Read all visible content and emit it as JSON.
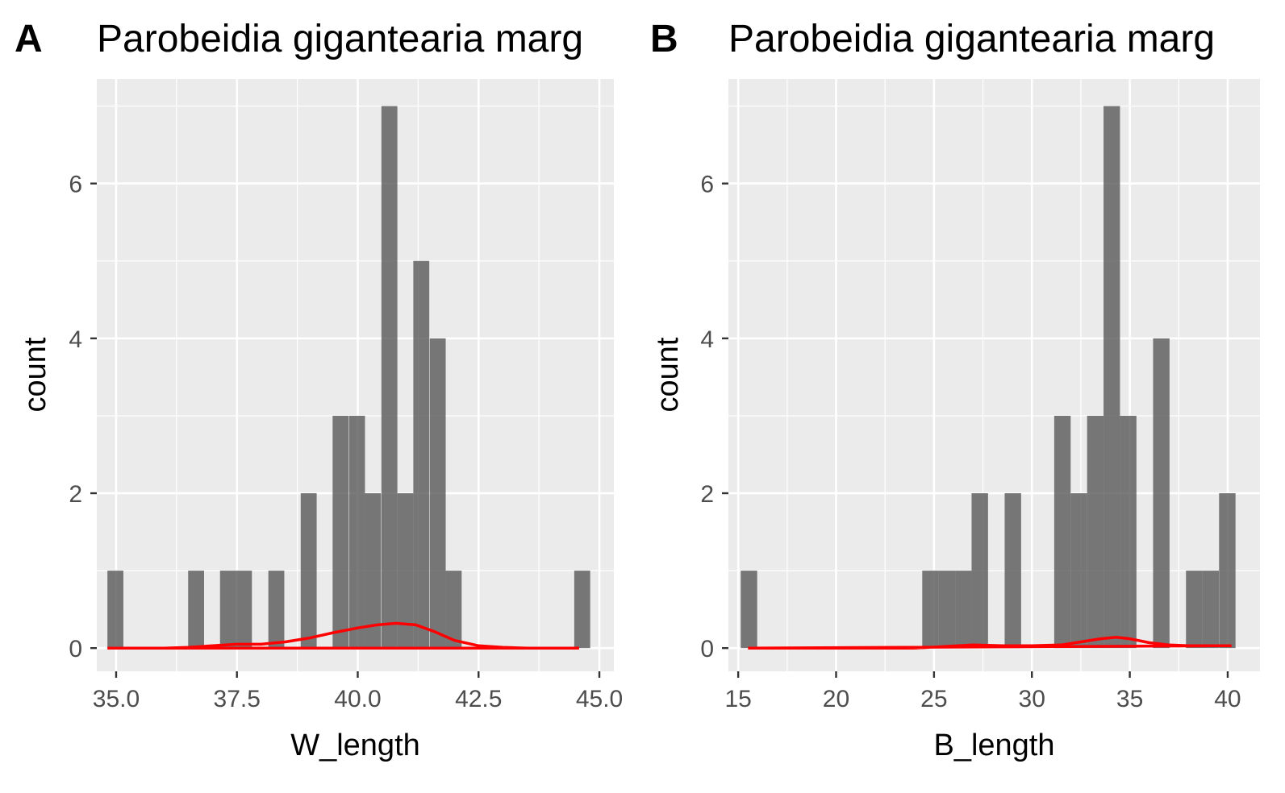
{
  "chart_data": [
    {
      "type": "bar",
      "panel_tag": "A",
      "title": "Parobeidia gigantearia marg",
      "xlabel": "W_length",
      "ylabel": "count",
      "xlim": [
        34.6,
        45.3
      ],
      "ylim": [
        -0.3,
        7.35
      ],
      "x_ticks": [
        35.0,
        37.5,
        40.0,
        42.5,
        45.0
      ],
      "x_tick_labels": [
        "35.0",
        "37.5",
        "40.0",
        "42.5",
        "45.0"
      ],
      "y_ticks": [
        0,
        2,
        4,
        6
      ],
      "y_tick_labels": [
        "0",
        "2",
        "4",
        "6"
      ],
      "bin_width": 0.33,
      "bins": [
        {
          "x0": 34.82,
          "count": 1
        },
        {
          "x0": 36.49,
          "count": 1
        },
        {
          "x0": 37.15,
          "count": 1
        },
        {
          "x0": 37.48,
          "count": 1
        },
        {
          "x0": 38.15,
          "count": 1
        },
        {
          "x0": 38.82,
          "count": 2
        },
        {
          "x0": 39.48,
          "count": 3
        },
        {
          "x0": 39.82,
          "count": 3
        },
        {
          "x0": 40.15,
          "count": 2
        },
        {
          "x0": 40.49,
          "count": 7
        },
        {
          "x0": 40.82,
          "count": 2
        },
        {
          "x0": 41.15,
          "count": 5
        },
        {
          "x0": 41.49,
          "count": 4
        },
        {
          "x0": 41.82,
          "count": 1
        },
        {
          "x0": 44.48,
          "count": 1
        }
      ],
      "density": {
        "color": "#ff0000",
        "x": [
          34.82,
          35.5,
          36.0,
          36.5,
          37.0,
          37.5,
          38.0,
          38.5,
          39.0,
          39.5,
          40.0,
          40.4,
          40.8,
          41.2,
          41.6,
          42.0,
          42.5,
          43.0,
          43.5,
          44.0,
          44.58
        ],
        "y": [
          0.0,
          0.0,
          0.0,
          0.01,
          0.03,
          0.05,
          0.05,
          0.08,
          0.13,
          0.2,
          0.26,
          0.3,
          0.32,
          0.3,
          0.21,
          0.1,
          0.03,
          0.01,
          0.0,
          0.0,
          0.0
        ]
      }
    },
    {
      "type": "bar",
      "panel_tag": "B",
      "title": "Parobeidia gigantearia marg",
      "xlabel": "B_length",
      "ylabel": "count",
      "xlim": [
        14.5,
        41.65
      ],
      "ylim": [
        -0.3,
        7.35
      ],
      "x_ticks": [
        15,
        20,
        25,
        30,
        35,
        40
      ],
      "x_tick_labels": [
        "15",
        "20",
        "25",
        "30",
        "35",
        "40"
      ],
      "y_ticks": [
        0,
        2,
        4,
        6
      ],
      "y_tick_labels": [
        "0",
        "2",
        "4",
        "6"
      ],
      "bin_width": 0.84,
      "bins": [
        {
          "x0": 15.13,
          "count": 1
        },
        {
          "x0": 24.4,
          "count": 1
        },
        {
          "x0": 25.24,
          "count": 1
        },
        {
          "x0": 26.08,
          "count": 1
        },
        {
          "x0": 26.92,
          "count": 2
        },
        {
          "x0": 28.61,
          "count": 2
        },
        {
          "x0": 31.14,
          "count": 3
        },
        {
          "x0": 31.98,
          "count": 2
        },
        {
          "x0": 32.82,
          "count": 3
        },
        {
          "x0": 33.66,
          "count": 7
        },
        {
          "x0": 34.5,
          "count": 3
        },
        {
          "x0": 36.19,
          "count": 4
        },
        {
          "x0": 37.87,
          "count": 1
        },
        {
          "x0": 38.71,
          "count": 1
        },
        {
          "x0": 39.56,
          "count": 2
        }
      ],
      "density": {
        "color": "#ff0000",
        "x": [
          15.5,
          18,
          21,
          24,
          25.5,
          27,
          28.5,
          30,
          31.5,
          32.5,
          33.5,
          34.3,
          35,
          36,
          37,
          38,
          39,
          40.2
        ],
        "y": [
          0.0,
          0.0,
          0.0,
          0.0,
          0.02,
          0.04,
          0.03,
          0.03,
          0.04,
          0.08,
          0.12,
          0.14,
          0.12,
          0.07,
          0.04,
          0.03,
          0.03,
          0.03
        ]
      }
    }
  ]
}
